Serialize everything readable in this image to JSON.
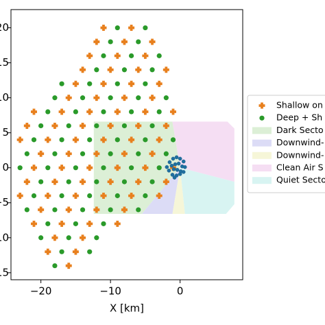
{
  "chart_data": {
    "type": "scatter",
    "x_label": "X [km]",
    "xlim": [
      -24.3,
      9.0
    ],
    "ylim": [
      -16,
      22.6
    ],
    "xticks": [
      {
        "value": -20,
        "label": "−20"
      },
      {
        "value": -10,
        "label": "−10"
      },
      0
    ],
    "yticks": [
      {
        "value": -15,
        "label": "−15"
      },
      {
        "value": -10,
        "label": "−10"
      },
      {
        "value": -5,
        "label": "−5"
      },
      0,
      5,
      10,
      15,
      20
    ],
    "legend": "right",
    "regions": [
      {
        "name": "Dark Secto",
        "color": "#dcefd6",
        "polygon": [
          [
            0,
            0
          ],
          [
            -1.1,
            6.6
          ],
          [
            -12.4,
            6.6
          ],
          [
            -12.4,
            -6.6
          ],
          [
            -5.5,
            -6.6
          ]
        ]
      },
      {
        "name": "Downwind-",
        "color": "#dcdcf6",
        "polygon": [
          [
            0,
            0
          ],
          [
            -5.5,
            -6.6
          ],
          [
            -1.1,
            -6.6
          ]
        ]
      },
      {
        "name": "Downwind-",
        "color": "#f6f6d8",
        "polygon": [
          [
            0,
            0
          ],
          [
            -1.1,
            -6.6
          ],
          [
            0.7,
            -6.6
          ]
        ]
      },
      {
        "name": "Clean Air S",
        "color": "#f5def3",
        "polygon": [
          [
            0,
            0
          ],
          [
            7.8,
            -2.0
          ],
          [
            7.8,
            5.6
          ],
          [
            6.8,
            6.6
          ],
          [
            -1.1,
            6.6
          ]
        ]
      },
      {
        "name": "Quiet Secto",
        "color": "#d8f4f2",
        "polygon": [
          [
            0,
            0
          ],
          [
            0.7,
            -6.6
          ],
          [
            6.6,
            -6.6
          ],
          [
            7.8,
            -5.2
          ],
          [
            7.8,
            -2.0
          ]
        ]
      }
    ],
    "series": [
      {
        "name": "Shallow on",
        "color": "#e8801e",
        "marker": "plus",
        "x": [
          -16,
          -19,
          -15,
          -18,
          -14,
          -21,
          -17,
          -13,
          -9,
          -20,
          -16,
          -12,
          -8,
          -23,
          -19,
          -15,
          -11,
          -7,
          -3,
          -22,
          -18,
          -14,
          -10,
          -6,
          -2,
          -21,
          -17,
          -13,
          -9,
          -5,
          -1,
          -20,
          -16,
          -12,
          -8,
          -4,
          -23,
          -19,
          -15,
          -11,
          -7,
          -3,
          -22,
          -18,
          -14,
          -10,
          -6,
          -2,
          -21,
          -17,
          -13,
          -9,
          -5,
          -1,
          -16,
          -12,
          -8,
          -4,
          -15,
          -11,
          -7,
          -3,
          -14,
          -10,
          -6,
          -2,
          -13,
          -9,
          -5,
          -12,
          -8,
          -4,
          -11,
          -7
        ],
        "y": [
          -14,
          -12,
          -12,
          -10,
          -10,
          -8,
          -8,
          -8,
          -8,
          -6,
          -6,
          -6,
          -6,
          -4,
          -4,
          -4,
          -4,
          -4,
          -4,
          -2,
          -2,
          -2,
          -2,
          -2,
          -2,
          0,
          0,
          0,
          0,
          0,
          0,
          2,
          2,
          2,
          2,
          2,
          4,
          4,
          4,
          4,
          4,
          4,
          6,
          6,
          6,
          6,
          6,
          6,
          8,
          8,
          8,
          8,
          8,
          8,
          10,
          10,
          10,
          10,
          12,
          12,
          12,
          12,
          14,
          14,
          14,
          14,
          16,
          16,
          16,
          18,
          18,
          18,
          20,
          20
        ]
      },
      {
        "name": "Deep + Sh",
        "color": "#2a9a2a",
        "marker": "circle",
        "x": [
          -18,
          -17,
          -13,
          -20,
          -16,
          -12,
          -19,
          -15,
          -11,
          -22,
          -18,
          -14,
          -10,
          -6,
          -21,
          -17,
          -13,
          -9,
          -5,
          -20,
          -16,
          -12,
          -8,
          -4,
          -23,
          -19,
          -15,
          -11,
          -7,
          -3,
          -22,
          -18,
          -14,
          -10,
          -6,
          -2,
          -21,
          -17,
          -13,
          -9,
          -5,
          -1,
          -20,
          -16,
          -12,
          -8,
          -4,
          -19,
          -15,
          -11,
          -7,
          -3,
          -18,
          -14,
          -10,
          -6,
          -2,
          -17,
          -13,
          -9,
          -5,
          -12,
          -8,
          -4,
          -11,
          -7,
          -3,
          -10,
          -6,
          -9,
          -5
        ],
        "y": [
          -14,
          -12,
          -12,
          -10,
          -10,
          -10,
          -8,
          -8,
          -8,
          -6,
          -6,
          -6,
          -6,
          -6,
          -4,
          -4,
          -4,
          -4,
          -4,
          -2,
          -2,
          -2,
          -2,
          -2,
          0,
          0,
          0,
          0,
          0,
          0,
          2,
          2,
          2,
          2,
          2,
          2,
          4,
          4,
          4,
          4,
          4,
          4,
          6,
          6,
          6,
          6,
          6,
          8,
          8,
          8,
          8,
          8,
          10,
          10,
          10,
          10,
          10,
          12,
          12,
          12,
          12,
          14,
          14,
          14,
          16,
          16,
          16,
          18,
          18,
          20,
          20
        ]
      },
      {
        "color": "#1f6f9f",
        "marker": "dot",
        "x": [
          -1.5,
          -1,
          -0.5,
          0,
          0.5,
          -1.2,
          -0.7,
          -0.2,
          0.3,
          0.7,
          -1.6,
          -0.9,
          -0.4,
          0.1,
          0.5,
          -1.1,
          -0.5,
          0,
          -0.8,
          -1.9
        ],
        "y": [
          0.8,
          1.3,
          1.5,
          1.3,
          0.9,
          0.3,
          0.5,
          0.6,
          0.2,
          0.1,
          -0.4,
          -0.2,
          -0.3,
          -0.5,
          -0.6,
          -1.0,
          -1.1,
          -0.9,
          -1.4,
          0.1
        ]
      }
    ]
  }
}
